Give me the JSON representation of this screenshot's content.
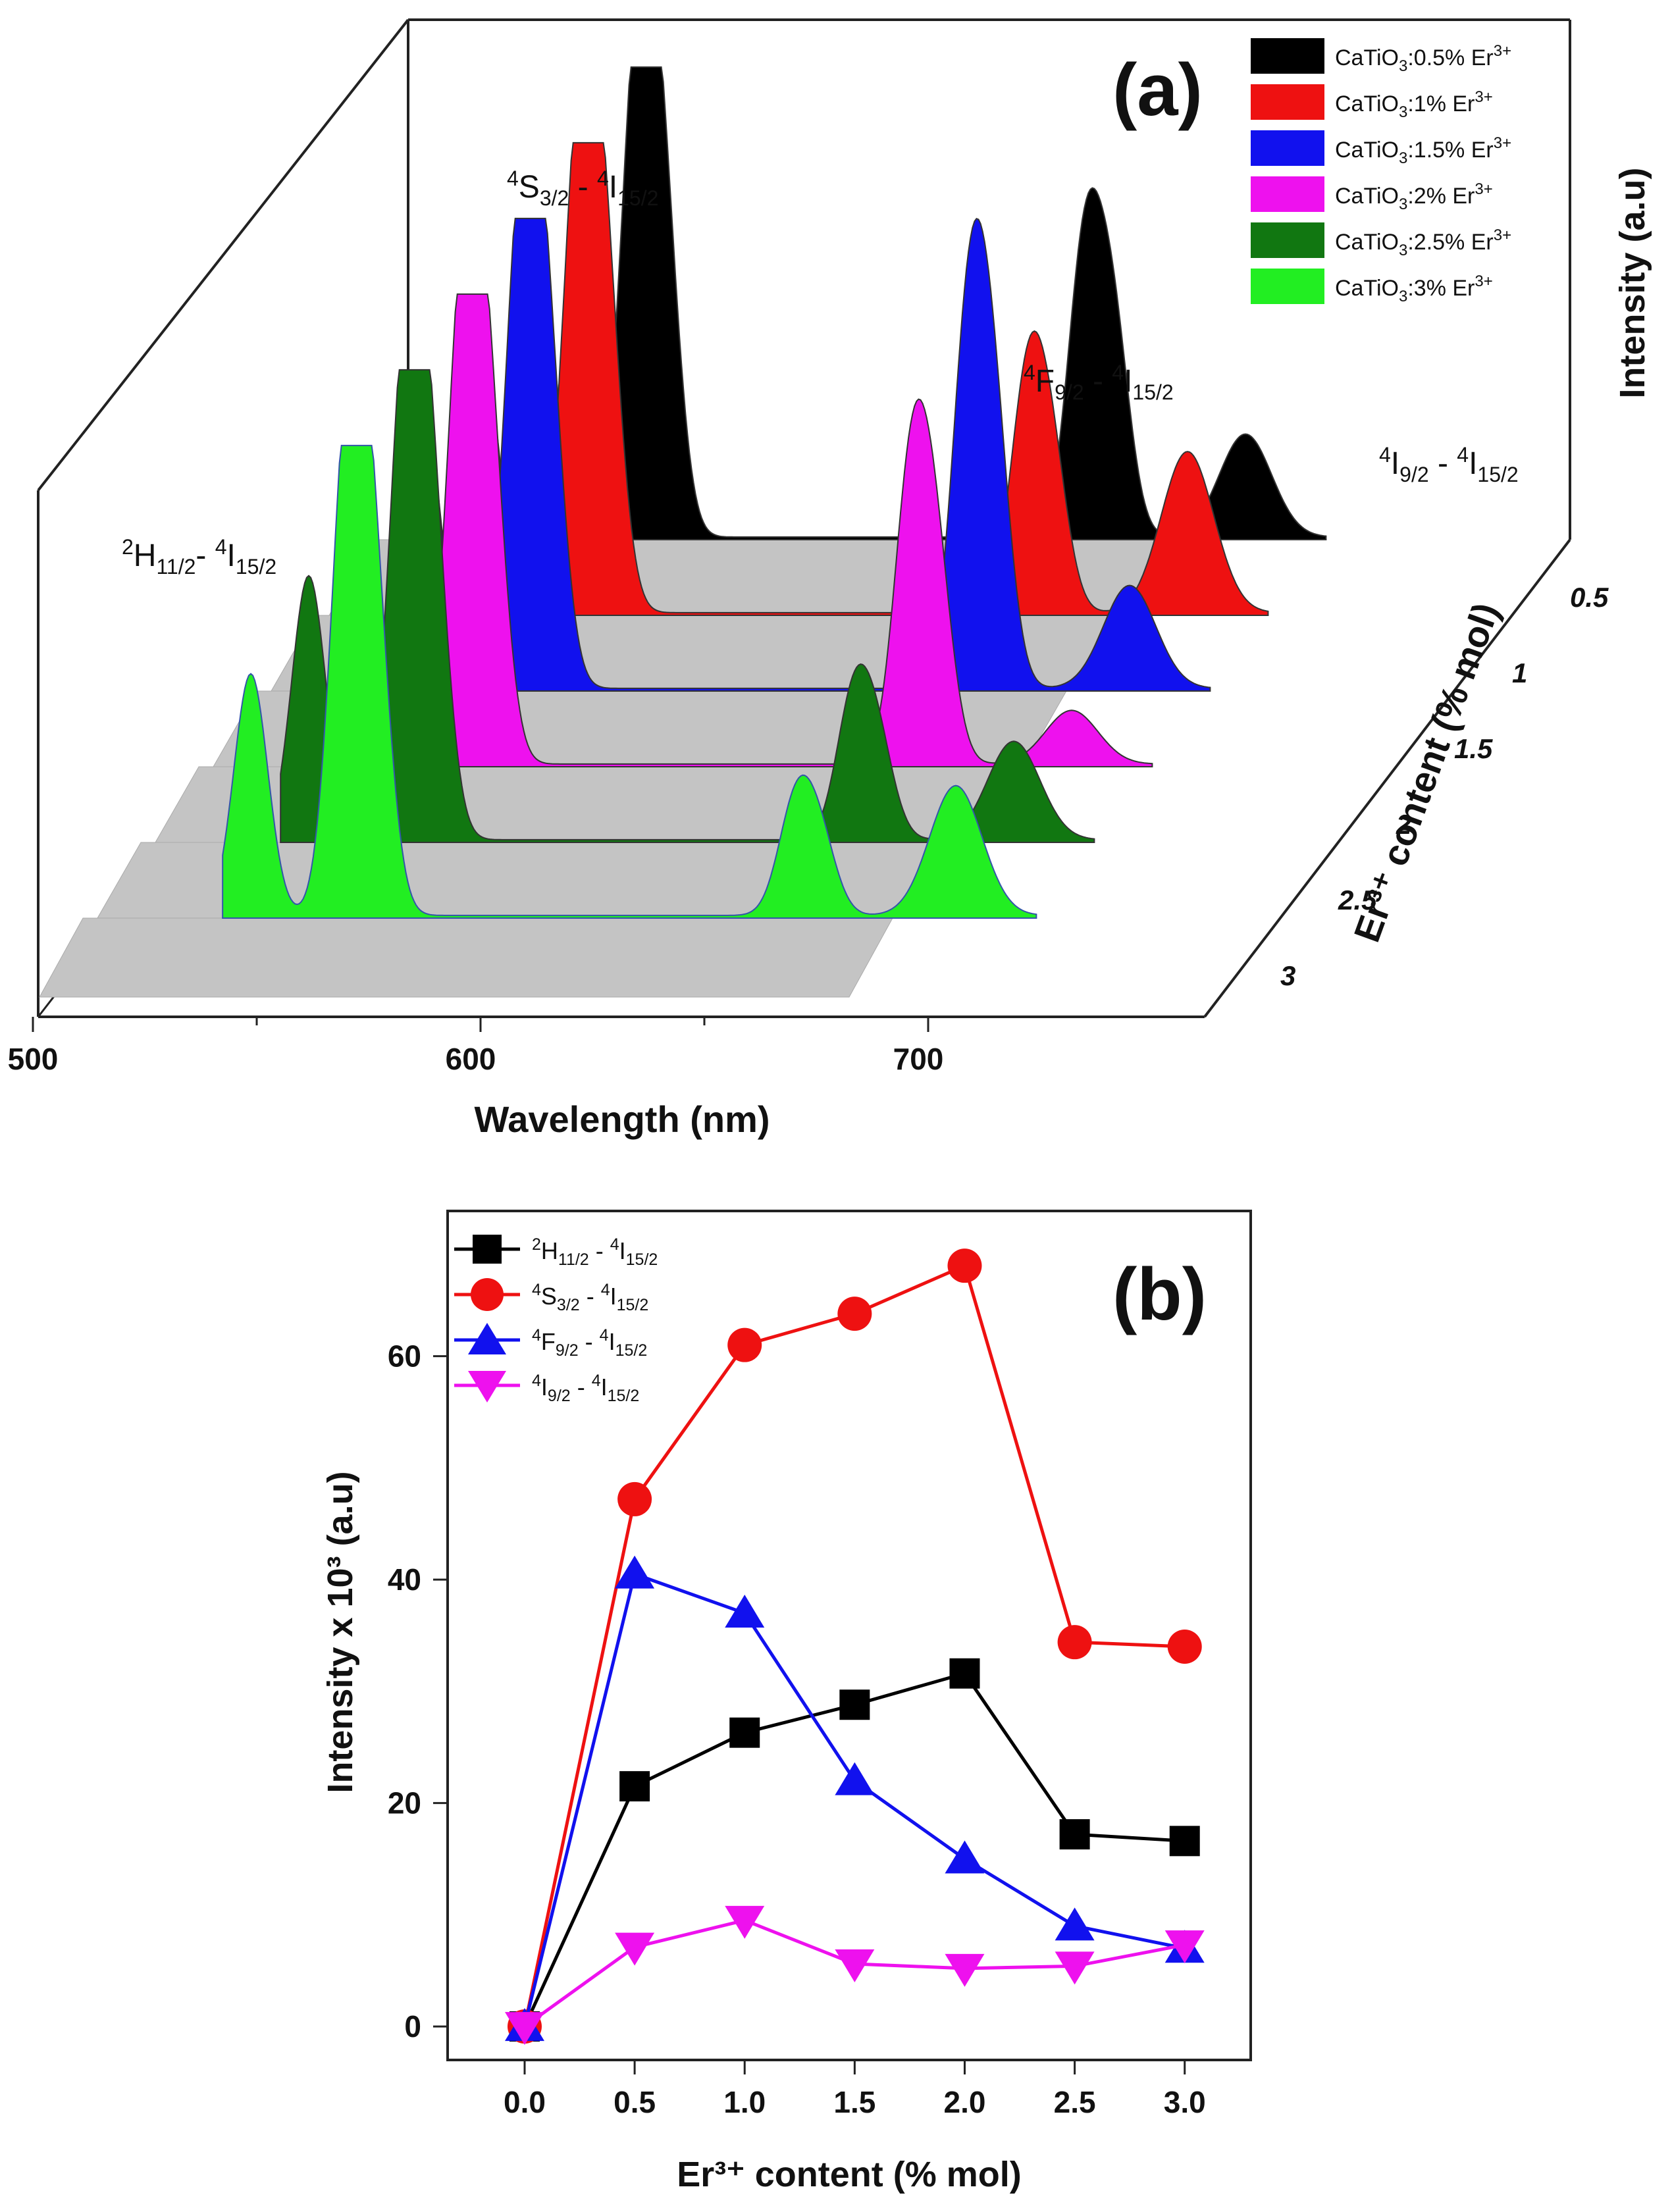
{
  "panel_a": {
    "letter": "(a)",
    "y_label": "Intensity (a.u)",
    "x_axis": {
      "label": "Wavelength (nm)",
      "ticks": [
        "500",
        "600",
        "700"
      ]
    },
    "z_axis": {
      "label": "Er³⁺ content (% mol)",
      "ticks": [
        "0.5",
        "1",
        "1.5",
        "2",
        "2.5",
        "3"
      ]
    },
    "transitions": [
      {
        "upper": "2",
        "term": "H",
        "sub": "11/2",
        "lower": "4",
        "lterm": "I",
        "lsub": "15/2"
      },
      {
        "upper": "4",
        "term": "S",
        "sub": "3/2",
        "lower": "4",
        "lterm": "I",
        "lsub": "15/2"
      },
      {
        "upper": "4",
        "term": "F",
        "sub": "9/2",
        "lower": "4",
        "lterm": "I",
        "lsub": "15/2"
      },
      {
        "upper": "4",
        "term": "I",
        "sub": "9/2",
        "lower": "4",
        "lterm": "I",
        "lsub": "15/2"
      }
    ],
    "legend": [
      {
        "pre": "CaTiO",
        "sub": "3",
        "post": ":0.5% Er",
        "sup": "3+",
        "color": "#000000"
      },
      {
        "pre": "CaTiO",
        "sub": "3",
        "post": ":1% Er",
        "sup": "3+",
        "color": "#ee1111"
      },
      {
        "pre": "CaTiO",
        "sub": "3",
        "post": ":1.5% Er",
        "sup": "3+",
        "color": "#1111ee"
      },
      {
        "pre": "CaTiO",
        "sub": "3",
        "post": ":2% Er",
        "sup": "3+",
        "color": "#ee11ee"
      },
      {
        "pre": "CaTiO",
        "sub": "3",
        "post": ":2.5% Er",
        "sup": "3+",
        "color": "#117711"
      },
      {
        "pre": "CaTiO",
        "sub": "3",
        "post": ":3% Er",
        "sup": "3+",
        "color": "#22ee22"
      }
    ]
  },
  "panel_b": {
    "letter": "(b)",
    "x_label": "Er³⁺ content (% mol)",
    "y_label": "Intensity x 10³ (a.u)"
  },
  "chart_data": [
    {
      "type": "area",
      "x_unit": "nm",
      "xlim": [
        500,
        720
      ],
      "y_label": "Intensity (a.u)",
      "series": [
        {
          "name": "CaTiO3:0.5% Er3+",
          "z": 0.5,
          "color": "#000000",
          "peaks": [
            [
              525,
              0.55
            ],
            [
              549,
              1.0
            ],
            [
              555,
              0.72
            ],
            [
              660,
              0.62
            ],
            [
              667,
              0.46
            ],
            [
              700,
              0.23
            ]
          ]
        },
        {
          "name": "CaTiO3:1% Er3+",
          "z": 1,
          "color": "#ee1111",
          "peaks": [
            [
              525,
              0.58
            ],
            [
              549,
              1.0
            ],
            [
              555,
              0.72
            ],
            [
              660,
              0.47
            ],
            [
              666,
              0.33
            ],
            [
              700,
              0.36
            ]
          ]
        },
        {
          "name": "CaTiO3:1.5% Er3+",
          "z": 1.5,
          "color": "#1111ee",
          "peaks": [
            [
              525,
              0.6
            ],
            [
              549,
              1.0
            ],
            [
              555,
              0.72
            ],
            [
              660,
              0.77
            ],
            [
              666,
              0.57
            ],
            [
              700,
              0.23
            ]
          ]
        },
        {
          "name": "CaTiO3:2% Er3+",
          "z": 2,
          "color": "#ee11ee",
          "peaks": [
            [
              525,
              0.47
            ],
            [
              549,
              1.0
            ],
            [
              555,
              0.72
            ],
            [
              660,
              0.6
            ],
            [
              666,
              0.44
            ],
            [
              700,
              0.12
            ]
          ]
        },
        {
          "name": "CaTiO3:2.5% Er3+",
          "z": 2.5,
          "color": "#117711",
          "peaks": [
            [
              525,
              0.59
            ],
            [
              549,
              1.0
            ],
            [
              555,
              0.72
            ],
            [
              660,
              0.29
            ],
            [
              666,
              0.21
            ],
            [
              700,
              0.22
            ]
          ]
        },
        {
          "name": "CaTiO3:3% Er3+",
          "z": 3,
          "color": "#22ee22",
          "peaks": [
            [
              525,
              0.54
            ],
            [
              549,
              1.0
            ],
            [
              555,
              0.72
            ],
            [
              660,
              0.23
            ],
            [
              666,
              0.17
            ],
            [
              700,
              0.29
            ]
          ]
        }
      ]
    },
    {
      "type": "line",
      "x": [
        0.0,
        0.5,
        1.0,
        1.5,
        2.0,
        2.5,
        3.0
      ],
      "x_ticks": [
        "0.0",
        "0.5",
        "1.0",
        "1.5",
        "2.0",
        "2.5",
        "3.0"
      ],
      "y_ticks": [
        "0",
        "20",
        "40",
        "60"
      ],
      "xlim": [
        -0.35,
        3.3
      ],
      "ylim": [
        -3,
        73
      ],
      "legend_position": "top-left",
      "series": [
        {
          "name": "2H11/2 - 4I15/2",
          "color": "#000000",
          "marker": "square",
          "values": [
            0,
            21.5,
            26.3,
            28.8,
            31.6,
            17.2,
            16.6
          ]
        },
        {
          "name": "4S3/2 - 4I15/2",
          "color": "#ee1111",
          "marker": "circle",
          "values": [
            0,
            47.2,
            61.0,
            63.8,
            68.1,
            34.4,
            34.0
          ]
        },
        {
          "name": "4F9/2 - 4I15/2",
          "color": "#1111ee",
          "marker": "triangle-up",
          "values": [
            0,
            40.5,
            37.0,
            22.0,
            15.0,
            9.0,
            7.0
          ]
        },
        {
          "name": "4I9/2 - 4I15/2",
          "color": "#ee11ee",
          "marker": "triangle-down",
          "values": [
            0,
            7.1,
            9.5,
            5.6,
            5.2,
            5.4,
            7.3
          ]
        }
      ]
    }
  ]
}
